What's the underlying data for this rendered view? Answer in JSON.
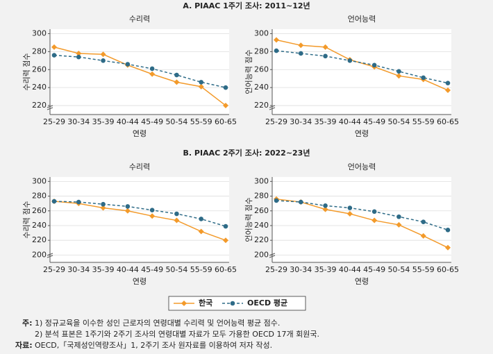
{
  "sections": [
    {
      "title": "A. PIAAC 1주기 조사: 2011~12년"
    },
    {
      "title": "B. PIAAC 2주기 조사: 2022~23년"
    }
  ],
  "chart_data": [
    {
      "type": "line",
      "title": "수리력",
      "xlabel": "연령",
      "ylabel": "수리력 점수",
      "categories": [
        "25-29",
        "30-34",
        "35-39",
        "40-44",
        "45-49",
        "50-54",
        "55-59",
        "60-65"
      ],
      "series": [
        {
          "name": "한국",
          "color": "#f39a2a",
          "marker": "diamond",
          "dash": false,
          "values": [
            285,
            278,
            277,
            265,
            255,
            246,
            241,
            220
          ]
        },
        {
          "name": "OECD 평균",
          "color": "#2e6b87",
          "marker": "circle",
          "dash": true,
          "values": [
            276,
            274,
            270,
            266,
            261,
            254,
            246,
            240
          ]
        }
      ],
      "ylim": [
        210,
        305
      ],
      "yticks": [
        220,
        240,
        260,
        280,
        300
      ],
      "grid": true
    },
    {
      "type": "line",
      "title": "언어능력",
      "xlabel": "연령",
      "ylabel": "언어능력 점수",
      "categories": [
        "25-29",
        "30-34",
        "35-39",
        "40-44",
        "45-49",
        "50-54",
        "55-59",
        "60-65"
      ],
      "series": [
        {
          "name": "한국",
          "color": "#f39a2a",
          "marker": "diamond",
          "dash": false,
          "values": [
            293,
            287,
            285,
            271,
            263,
            253,
            249,
            237
          ]
        },
        {
          "name": "OECD 평균",
          "color": "#2e6b87",
          "marker": "circle",
          "dash": true,
          "values": [
            281,
            278,
            275,
            270,
            265,
            258,
            251,
            245
          ]
        }
      ],
      "ylim": [
        210,
        305
      ],
      "yticks": [
        220,
        240,
        260,
        280,
        300
      ],
      "grid": true
    },
    {
      "type": "line",
      "title": "수리력",
      "xlabel": "연령",
      "ylabel": "수리력 점수",
      "categories": [
        "25-29",
        "30-34",
        "35-39",
        "40-44",
        "45-49",
        "50-54",
        "55-59",
        "60-65"
      ],
      "series": [
        {
          "name": "한국",
          "color": "#f39a2a",
          "marker": "diamond",
          "dash": false,
          "values": [
            273,
            270,
            264,
            260,
            253,
            247,
            232,
            220
          ]
        },
        {
          "name": "OECD 평균",
          "color": "#2e6b87",
          "marker": "circle",
          "dash": true,
          "values": [
            273,
            272,
            269,
            266,
            261,
            256,
            249,
            239
          ]
        }
      ],
      "ylim": [
        190,
        306
      ],
      "yticks": [
        200,
        220,
        240,
        260,
        280,
        300
      ],
      "grid": true
    },
    {
      "type": "line",
      "title": "언어능력",
      "xlabel": "연령",
      "ylabel": "언어능력 점수",
      "categories": [
        "25-29",
        "30-34",
        "35-39",
        "40-44",
        "45-49",
        "50-54",
        "55-59",
        "60-65"
      ],
      "series": [
        {
          "name": "한국",
          "color": "#f39a2a",
          "marker": "diamond",
          "dash": false,
          "values": [
            276,
            272,
            262,
            256,
            247,
            241,
            226,
            210
          ]
        },
        {
          "name": "OECD 평균",
          "color": "#2e6b87",
          "marker": "circle",
          "dash": true,
          "values": [
            274,
            272,
            267,
            264,
            259,
            252,
            245,
            234
          ]
        }
      ],
      "ylim": [
        190,
        306
      ],
      "yticks": [
        200,
        220,
        240,
        260,
        280,
        300
      ],
      "grid": true
    }
  ],
  "notes": {
    "label": "주:",
    "items": [
      "1) 정규교육을 이수한 성인 근로자의 연령대별 수리력 및 언어능력 평균 점수.",
      "2) 분석 표본은 1주기와 2주기 조사의 연령대별 자료가 모두 가용한 OECD 17개 회원국."
    ]
  },
  "source": {
    "label": "자료:",
    "text": "OECD,「국제성인역량조사」1, 2주기 조사 원자료를 이용하여 저자 작성."
  }
}
